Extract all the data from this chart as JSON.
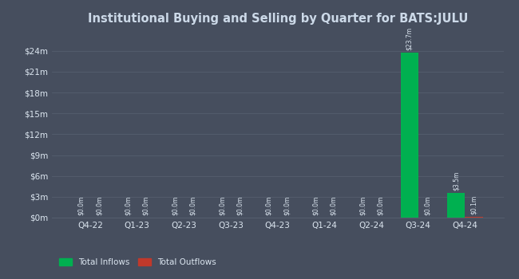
{
  "title": "Institutional Buying and Selling by Quarter for BATS:JULU",
  "categories": [
    "Q4-22",
    "Q1-23",
    "Q2-23",
    "Q3-23",
    "Q4-23",
    "Q1-24",
    "Q2-24",
    "Q3-24",
    "Q4-24"
  ],
  "inflows": [
    0.0,
    0.0,
    0.0,
    0.0,
    0.0,
    0.0,
    0.0,
    23.7,
    3.5
  ],
  "outflows": [
    0.0,
    0.0,
    0.0,
    0.0,
    0.0,
    0.0,
    0.0,
    0.0,
    0.1
  ],
  "inflow_labels": [
    "$0.0m",
    "$0.0m",
    "$0.0m",
    "$0.0m",
    "$0.0m",
    "$0.0m",
    "$0.0m",
    "$23.7m",
    "$3.5m"
  ],
  "outflow_labels": [
    "$0.0m",
    "$0.0m",
    "$0.0m",
    "$0.0m",
    "$0.0m",
    "$0.0m",
    "$0.0m",
    "$0.0m",
    "$0.1m"
  ],
  "inflow_color": "#00b050",
  "outflow_color": "#c0392b",
  "background_color": "#464e5e",
  "grid_color": "#555e6e",
  "text_color": "#dce6f0",
  "ylabel_ticks": [
    "$0m",
    "$3m",
    "$6m",
    "$9m",
    "$12m",
    "$15m",
    "$18m",
    "$21m",
    "$24m"
  ],
  "ylabel_values": [
    0,
    3,
    6,
    9,
    12,
    15,
    18,
    21,
    24
  ],
  "ylim": [
    0,
    26.5
  ],
  "legend_inflow": "Total Inflows",
  "legend_outflow": "Total Outflows",
  "bar_width": 0.38,
  "title_color": "#ccd9e8"
}
